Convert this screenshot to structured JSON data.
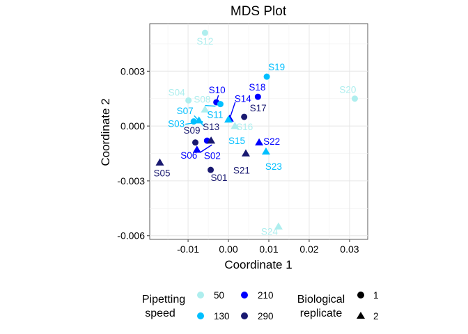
{
  "chart_data": {
    "type": "scatter",
    "title": "MDS Plot",
    "xlabel": "Coordinate 1",
    "ylabel": "Coordinate 2",
    "xlim": [
      -0.0195,
      0.0345
    ],
    "ylim": [
      -0.0062,
      0.0056
    ],
    "x_ticks": [
      {
        "value": -0.01,
        "label": "-0.01"
      },
      {
        "value": 0.0,
        "label": "0.00"
      },
      {
        "value": 0.01,
        "label": "0.01"
      },
      {
        "value": 0.02,
        "label": "0.02"
      },
      {
        "value": 0.03,
        "label": "0.03"
      }
    ],
    "y_ticks": [
      {
        "value": 0.003,
        "label": "0.003"
      },
      {
        "value": 0.0,
        "label": "0.000"
      },
      {
        "value": -0.003,
        "label": "-0.003"
      },
      {
        "value": -0.006,
        "label": "-0.006"
      }
    ],
    "grid": true,
    "speed_colors": {
      "50": "#AEEEEE",
      "130": "#00BFFF",
      "210": "#0000FF",
      "290": "#191970"
    },
    "legend": {
      "position": "bottom",
      "speed_title_line1": "Pipetting",
      "speed_title_line2": "speed",
      "speed_levels": [
        "50",
        "130",
        "210",
        "290"
      ],
      "replicate_title_line1": "Biological",
      "replicate_title_line2": "replicate",
      "replicate_levels": [
        {
          "label": "1",
          "shape": "circle"
        },
        {
          "label": "2",
          "shape": "triangle"
        }
      ]
    },
    "points": [
      {
        "label": "S01",
        "x": -0.0044,
        "y": -0.0024,
        "speed": "290",
        "replicate": "1"
      },
      {
        "label": "S02",
        "x": -0.0078,
        "y": -0.0013,
        "speed": "210",
        "replicate": "2"
      },
      {
        "label": "S03",
        "x": -0.0086,
        "y": 0.00025,
        "speed": "130",
        "replicate": "1"
      },
      {
        "label": "S04",
        "x": -0.0099,
        "y": 0.0014,
        "speed": "50",
        "replicate": "1"
      },
      {
        "label": "S05",
        "x": -0.017,
        "y": -0.002,
        "speed": "290",
        "replicate": "2"
      },
      {
        "label": "S06",
        "x": -0.0053,
        "y": -0.0008,
        "speed": "210",
        "replicate": "1"
      },
      {
        "label": "S07",
        "x": -0.0073,
        "y": 0.0003,
        "speed": "130",
        "replicate": "2"
      },
      {
        "label": "S08",
        "x": -0.0058,
        "y": 0.0009,
        "speed": "50",
        "replicate": "2"
      },
      {
        "label": "S09",
        "x": -0.0082,
        "y": -0.0009,
        "speed": "290",
        "replicate": "1"
      },
      {
        "label": "S10",
        "x": -0.003,
        "y": 0.0013,
        "speed": "210",
        "replicate": "1"
      },
      {
        "label": "S11",
        "x": -0.002,
        "y": 0.0012,
        "speed": "130",
        "replicate": "1"
      },
      {
        "label": "S12",
        "x": -0.0058,
        "y": 0.0051,
        "speed": "50",
        "replicate": "1"
      },
      {
        "label": "S13",
        "x": -0.0043,
        "y": -0.0008,
        "speed": "290",
        "replicate": "2"
      },
      {
        "label": "S14",
        "x": 0.0003,
        "y": 0.0004,
        "speed": "210",
        "replicate": "2"
      },
      {
        "label": "S15",
        "x": 0.0,
        "y": 0.00035,
        "speed": "130",
        "replicate": "2"
      },
      {
        "label": "S16",
        "x": 0.0016,
        "y": 0.0,
        "speed": "50",
        "replicate": "2"
      },
      {
        "label": "S17",
        "x": 0.0039,
        "y": 0.0005,
        "speed": "290",
        "replicate": "1"
      },
      {
        "label": "S18",
        "x": 0.0073,
        "y": 0.0016,
        "speed": "210",
        "replicate": "1"
      },
      {
        "label": "S19",
        "x": 0.0095,
        "y": 0.0027,
        "speed": "130",
        "replicate": "1"
      },
      {
        "label": "S20",
        "x": 0.0313,
        "y": 0.0015,
        "speed": "50",
        "replicate": "1"
      },
      {
        "label": "S21",
        "x": 0.0043,
        "y": -0.0015,
        "speed": "290",
        "replicate": "2"
      },
      {
        "label": "S22",
        "x": 0.0076,
        "y": -0.0009,
        "speed": "210",
        "replicate": "2"
      },
      {
        "label": "S23",
        "x": 0.0093,
        "y": -0.0014,
        "speed": "130",
        "replicate": "2"
      },
      {
        "label": "S24",
        "x": 0.0124,
        "y": -0.0055,
        "speed": "50",
        "replicate": "2"
      }
    ]
  }
}
